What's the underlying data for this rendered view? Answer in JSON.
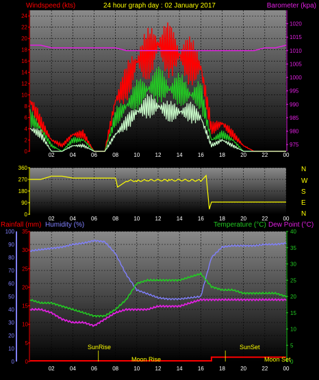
{
  "header": {
    "left_title": "Windspeed (kts)",
    "center_title": "24 hour graph day : 02 January 2017",
    "right_title": "Barometer (kpa)"
  },
  "colors": {
    "wind_max": "#ff0000",
    "wind_avg": "#22cc22",
    "wind_min": "#ccffcc",
    "barometer": "#e020e0",
    "direction": "#ffff00",
    "humidity": "#8080ff",
    "temperature": "#22cc22",
    "dew_point": "#e020e0",
    "rainfall": "#ff0000",
    "text_yellow": "#ffff00"
  },
  "x_ticks": [
    "02",
    "04",
    "06",
    "08",
    "10",
    "12",
    "14",
    "16",
    "18",
    "20",
    "22",
    "00"
  ],
  "chart_data": [
    {
      "type": "line",
      "panel": "wind",
      "ylabel_left": "Windspeed (kts)",
      "ylabel_right": "Barometer (kpa)",
      "ylim_left": [
        0,
        25
      ],
      "yticks_left": [
        "0",
        "2",
        "4",
        "6",
        "8",
        "10",
        "12",
        "14",
        "16",
        "18",
        "20",
        "22",
        "24"
      ],
      "ylim_right": [
        972.5,
        1025
      ],
      "yticks_right": [
        "975",
        "980",
        "985",
        "990",
        "995",
        "1000",
        "1005",
        "1010",
        "1015",
        "1020"
      ],
      "x": [
        0,
        1,
        2,
        3,
        4,
        5,
        6,
        7,
        8,
        9,
        10,
        11,
        12,
        13,
        14,
        15,
        16,
        17,
        18,
        19,
        20,
        21,
        22,
        23,
        24
      ],
      "series": [
        {
          "values": [
            9,
            5,
            2,
            1,
            3,
            3,
            0,
            0,
            9,
            12,
            16,
            17,
            19,
            18,
            17,
            16,
            15,
            4,
            5,
            3,
            1,
            0,
            0,
            0,
            0
          ]
        },
        {
          "values": [
            6,
            4,
            1,
            0,
            2,
            2,
            0,
            0,
            6,
            8,
            10,
            11,
            12,
            11,
            11,
            10,
            10,
            2,
            3,
            2,
            0,
            0,
            0,
            0,
            0
          ]
        },
        {
          "values": [
            4,
            3,
            0,
            0,
            1,
            1,
            0,
            0,
            3,
            5,
            7,
            8,
            8,
            7,
            7,
            7,
            6,
            1,
            2,
            1,
            0,
            0,
            0,
            0,
            0
          ]
        },
        {
          "values": [
            1012,
            1012,
            1011,
            1011,
            1011,
            1011,
            1011,
            1011,
            1011,
            1010,
            1010,
            1010,
            1010,
            1010,
            1010,
            1010,
            1010,
            1010,
            1010,
            1010,
            1010,
            1010,
            1011,
            1011,
            1012
          ]
        }
      ]
    },
    {
      "type": "line",
      "panel": "direction",
      "ylim": [
        0,
        360
      ],
      "yticks": [
        "0",
        "90",
        "180",
        "270",
        "360"
      ],
      "compass_labels": [
        "N",
        "W",
        "S",
        "E",
        "N"
      ],
      "x": [
        0,
        1,
        2,
        3,
        4,
        5,
        6,
        7,
        8,
        8.2,
        9,
        10,
        11,
        12,
        13,
        14,
        15,
        16,
        16.5,
        16.8,
        17,
        18,
        19,
        20,
        21,
        22,
        23,
        24
      ],
      "series": [
        {
          "values": [
            270,
            270,
            295,
            295,
            280,
            280,
            280,
            280,
            280,
            210,
            260,
            260,
            262,
            265,
            262,
            265,
            263,
            262,
            300,
            40,
            95,
            95,
            95,
            95,
            95,
            95,
            95,
            95
          ]
        }
      ]
    },
    {
      "type": "line",
      "panel": "climate",
      "ylabel_left_1": "Rainfall (mm)",
      "ylabel_left_2": "Humidity (%)",
      "ylabel_right": "Temperature (°C)",
      "ylabel_right_2": "Dew Point (°C)",
      "ylim_humidity": [
        0,
        100
      ],
      "yticks_humidity": [
        "0",
        "10",
        "20",
        "30",
        "40",
        "50",
        "60",
        "70",
        "80",
        "90",
        "100"
      ],
      "ylim_rain": [
        0,
        35
      ],
      "yticks_rain": [
        "0",
        "5",
        "10",
        "15",
        "20",
        "25",
        "30",
        "35"
      ],
      "ylim_temp": [
        0,
        40
      ],
      "yticks_temp": [
        "0",
        "5",
        "10",
        "15",
        "20",
        "25",
        "30",
        "35",
        "40"
      ],
      "annotations": {
        "sunrise": "SunRise",
        "sunset": "SunSet",
        "moonrise": "Moon Rise",
        "moonset": "Moon Set"
      },
      "x": [
        0,
        1,
        2,
        3,
        4,
        5,
        6,
        7,
        8,
        9,
        10,
        11,
        12,
        13,
        14,
        15,
        16,
        17,
        18,
        19,
        20,
        21,
        22,
        23,
        24
      ],
      "series": [
        {
          "values": [
            85,
            86,
            87,
            88,
            90,
            91,
            93,
            92,
            83,
            67,
            55,
            52,
            49,
            48,
            48,
            49,
            50,
            80,
            88,
            89,
            89,
            89,
            90,
            90,
            91
          ]
        },
        {
          "values": [
            19,
            18,
            18,
            17,
            16,
            15,
            14,
            14,
            16,
            19,
            24,
            25,
            25,
            25,
            25,
            26,
            27,
            23,
            22,
            22,
            21,
            21,
            21,
            21,
            20
          ]
        },
        {
          "values": [
            16,
            16,
            15,
            13,
            12,
            12,
            11,
            13,
            15,
            16,
            16,
            16,
            17,
            17,
            17,
            18,
            19,
            19,
            19,
            19,
            19,
            19,
            19,
            19,
            19
          ]
        },
        {
          "values": [
            0,
            0,
            0,
            0,
            0,
            0,
            0,
            0,
            0,
            0,
            0,
            0,
            0,
            0,
            0,
            0,
            0,
            1,
            1,
            1,
            1,
            1,
            1,
            1,
            1
          ]
        }
      ]
    }
  ]
}
